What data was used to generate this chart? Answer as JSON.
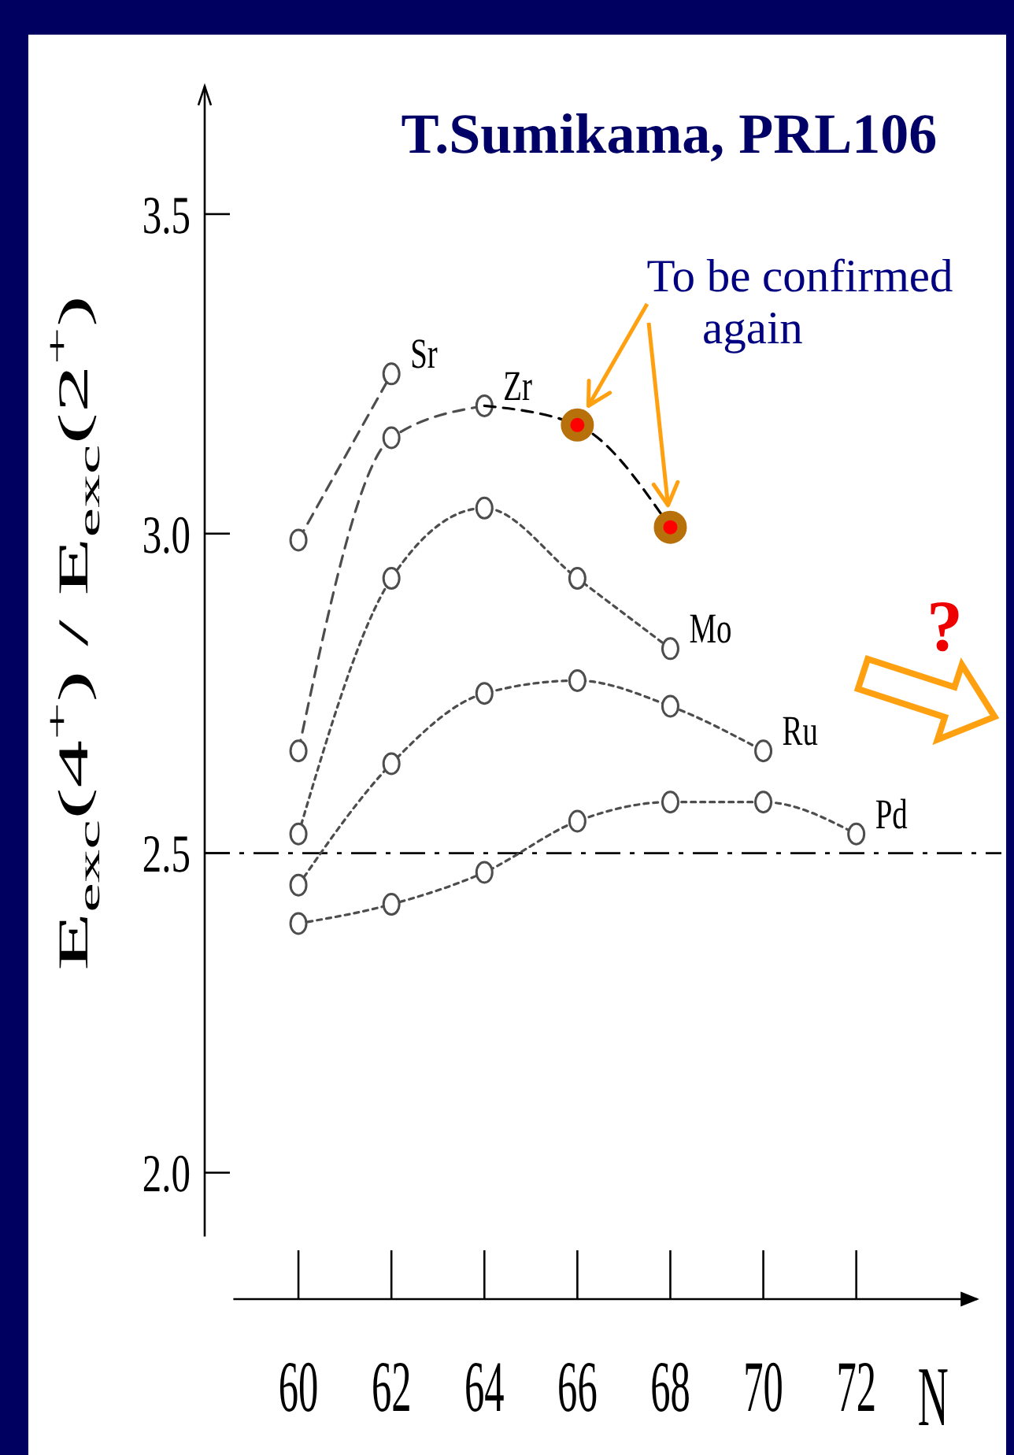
{
  "chart_data": {
    "type": "line",
    "title": "T.Sumikama, PRL106",
    "xlabel": "N",
    "ylabel": "E$_{exc}$(4$^{+}$) / E$_{exc}$(2$^{+}$)",
    "annotations": [
      "To be confirmed again",
      "?"
    ],
    "xlim": [
      58.6,
      74.6
    ],
    "xticks": [
      60,
      62,
      64,
      66,
      68,
      70,
      72
    ],
    "ylim": [
      1.9,
      3.7
    ],
    "yticks": [
      {
        "value": 2.0,
        "label": "2.0"
      },
      2.5,
      {
        "value": 3.0,
        "label": "3.0"
      },
      3.5
    ],
    "ref_lines": [
      {
        "axis": "y",
        "value": 2.5,
        "line_style": "dashdot",
        "color": "#000000"
      }
    ],
    "marker": "circle",
    "series": [
      {
        "name": "Sr",
        "color": "#4d4d4d",
        "line_style": "dashed",
        "x": [
          60,
          62
        ],
        "values": [
          2.99,
          3.25
        ]
      },
      {
        "name": "Zr",
        "color": "#4d4d4d",
        "line_style": "dashed",
        "x": [
          60,
          62,
          64
        ],
        "values": [
          2.66,
          3.15,
          3.2
        ]
      },
      {
        "name": "Mo",
        "color": "#4d4d4d",
        "line_style": "dotted",
        "x": [
          60,
          62,
          64,
          66,
          68
        ],
        "values": [
          2.53,
          2.93,
          3.04,
          2.93,
          2.82
        ]
      },
      {
        "name": "Ru",
        "color": "#4d4d4d",
        "line_style": "dotted",
        "x": [
          60,
          62,
          64,
          66,
          68,
          70
        ],
        "values": [
          2.45,
          2.64,
          2.75,
          2.77,
          2.73,
          2.66
        ]
      },
      {
        "name": "Pd",
        "color": "#4d4d4d",
        "line_style": "dotted",
        "x": [
          60,
          62,
          64,
          66,
          68,
          70,
          72
        ],
        "values": [
          2.39,
          2.42,
          2.47,
          2.55,
          2.58,
          2.58,
          2.53
        ]
      },
      {
        "color": "#000000",
        "line_style": "dashed",
        "marker": "none",
        "x": [
          64,
          66,
          68
        ],
        "values": [
          3.2,
          3.17,
          3.01
        ]
      },
      {
        "type": "scatter",
        "color": "#b8700a",
        "x": [
          66,
          68
        ],
        "values": [
          3.17,
          3.01
        ]
      }
    ]
  }
}
